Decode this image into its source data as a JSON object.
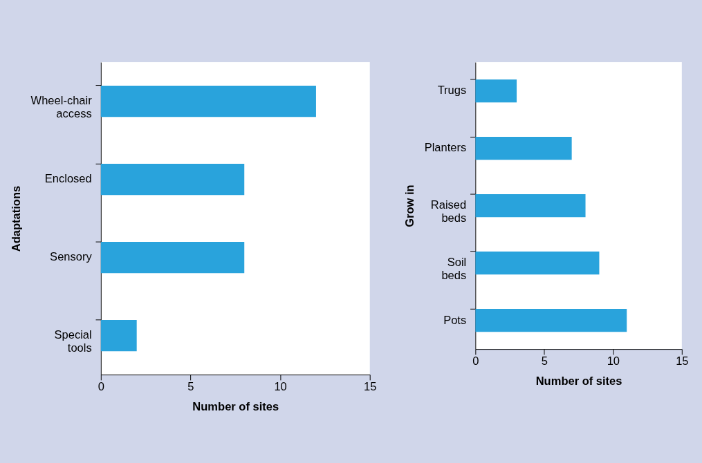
{
  "chart_data": [
    {
      "type": "bar",
      "orientation": "horizontal",
      "ylabel": "Adaptations",
      "xlabel": "Number of sites",
      "categories": [
        "Wheel-chair access",
        "Enclosed",
        "Sensory",
        "Special tools"
      ],
      "values": [
        12,
        8,
        8,
        2
      ],
      "color": "#29a3dc",
      "xlim": [
        0,
        15
      ],
      "xticks": [
        0,
        5,
        10,
        15
      ]
    },
    {
      "type": "bar",
      "orientation": "horizontal",
      "ylabel": "Grow in",
      "xlabel": "Number of sites",
      "categories": [
        "Trugs",
        "Planters",
        "Raised beds",
        "Soil beds",
        "Pots"
      ],
      "values": [
        3,
        7,
        8,
        9,
        11
      ],
      "color": "#29a3dc",
      "xlim": [
        0,
        15
      ],
      "xticks": [
        0,
        5,
        10,
        15
      ]
    }
  ]
}
